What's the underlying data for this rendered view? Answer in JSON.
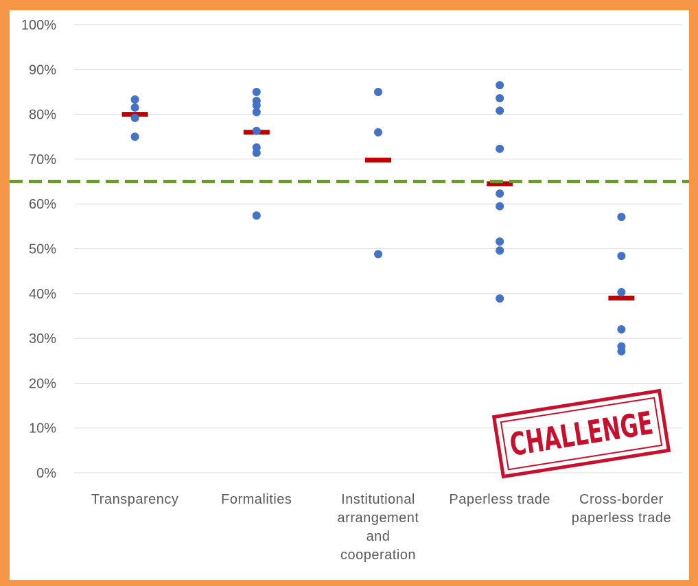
{
  "chart_data": {
    "type": "scatter",
    "title": "",
    "xlabel": "",
    "ylabel": "",
    "ylim": [
      0,
      100
    ],
    "y_tick_labels": [
      "0%",
      "10%",
      "20%",
      "30%",
      "40%",
      "50%",
      "60%",
      "70%",
      "80%",
      "90%",
      "100%"
    ],
    "grid": true,
    "categories": [
      [
        "Transparency"
      ],
      [
        "Formalities"
      ],
      [
        "Institutional",
        "arrangement",
        "and",
        "cooperation"
      ],
      [
        "Paperless trade"
      ],
      [
        "Cross-border",
        "paperless trade"
      ]
    ],
    "points": [
      [
        83.3,
        81.5,
        79.2,
        75.0
      ],
      [
        85.0,
        83.0,
        82.0,
        80.5,
        76.3,
        72.6,
        71.4,
        57.4
      ],
      [
        85.0,
        76.0,
        48.8
      ],
      [
        86.5,
        83.6,
        80.8,
        72.3,
        62.3,
        59.5,
        51.6,
        49.6,
        38.9
      ],
      [
        57.1,
        48.4,
        40.3,
        32.0,
        28.2,
        27.1
      ]
    ],
    "average_markers": [
      80.0,
      76.0,
      69.8,
      64.5,
      39.0
    ],
    "reference_line": 65.0,
    "colors": {
      "points": "#4472c4",
      "average": "#c00000",
      "reference": "#70963c",
      "grid": "#d9d9d9"
    }
  },
  "stamp": {
    "text": "CHALLENGE"
  }
}
